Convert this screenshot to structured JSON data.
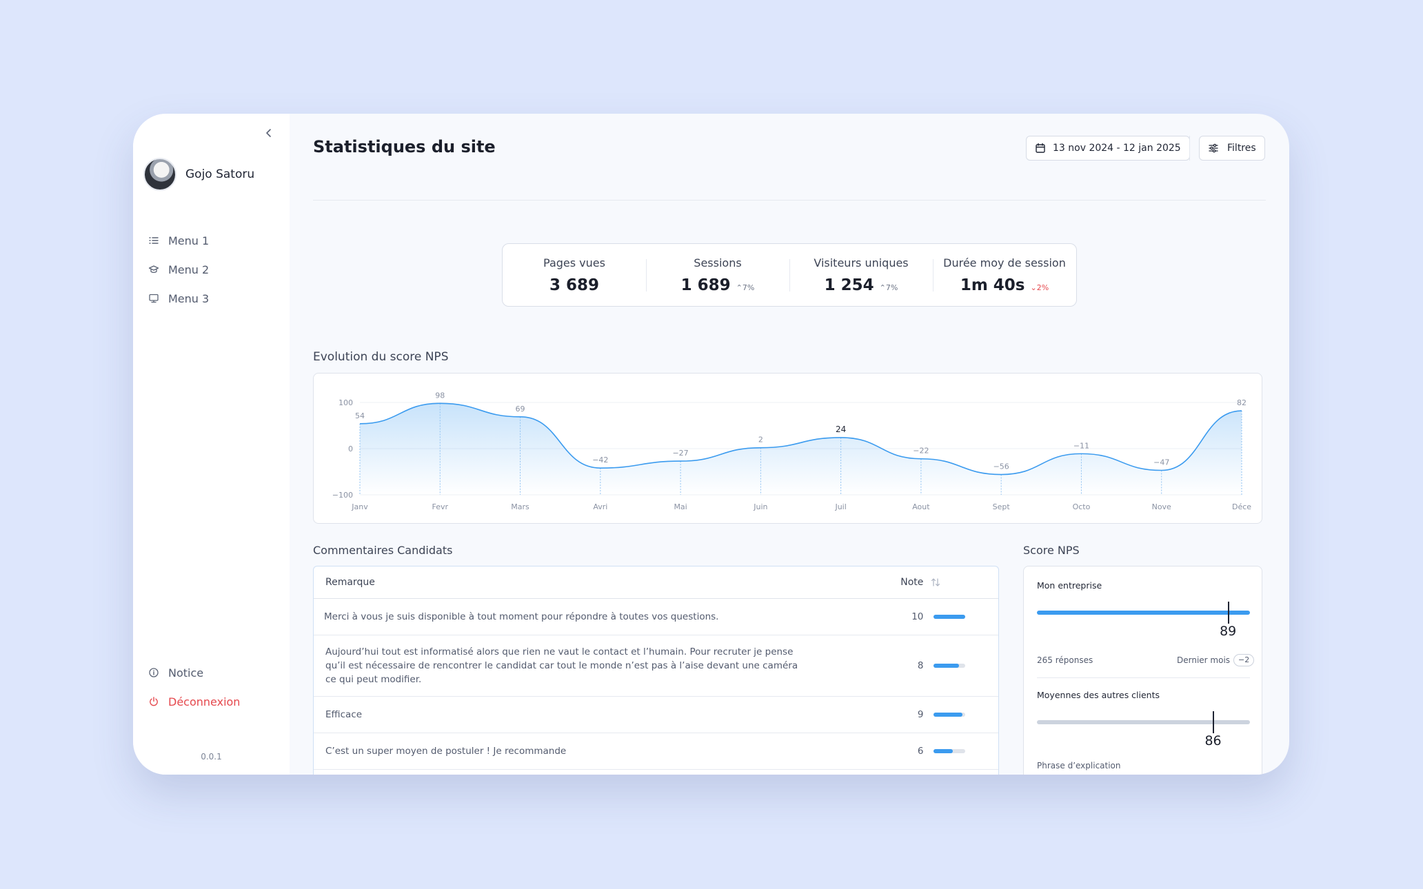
{
  "sidebar": {
    "user_name": "Gojo Satoru",
    "menu": [
      {
        "label": "Menu 1",
        "icon": "list-icon"
      },
      {
        "label": "Menu 2",
        "icon": "graduation-cap-icon"
      },
      {
        "label": "Menu 3",
        "icon": "monitor-icon"
      }
    ],
    "notice_label": "Notice",
    "logout_label": "Déconnexion",
    "version": "0.0.1"
  },
  "header": {
    "title": "Statistiques du site",
    "date_range": "13 nov 2024 - 12 jan 2025",
    "filters_label": "Filtres"
  },
  "stats": [
    {
      "label": "Pages vues",
      "value": "3 689",
      "delta": "",
      "trend": "none"
    },
    {
      "label": "Sessions",
      "value": "1 689",
      "delta": "7%",
      "trend": "up"
    },
    {
      "label": "Visiteurs uniques",
      "value": "1 254",
      "delta": "7%",
      "trend": "up"
    },
    {
      "label": "Durée moy de session",
      "value": "1m 40s",
      "delta": "2%",
      "trend": "down"
    }
  ],
  "nps_chart": {
    "title": "Evolution du score NPS",
    "highlight_index": 6
  },
  "chart_data": {
    "type": "area",
    "title": "Evolution du score NPS",
    "xlabel": "",
    "ylabel": "",
    "categories": [
      "Janv",
      "Fevr",
      "Mars",
      "Avri",
      "Mai",
      "Juin",
      "Juil",
      "Aout",
      "Sept",
      "Octo",
      "Nove",
      "Déce"
    ],
    "values": [
      54,
      98,
      69,
      -42,
      -27,
      2,
      24,
      -22,
      -56,
      -11,
      -47,
      82
    ],
    "data_labels": [
      "54",
      "98",
      "69",
      "−42",
      "−27",
      "2",
      "24",
      "−22",
      "−56",
      "−11",
      "−47",
      "82"
    ],
    "y_ticks": [
      "100",
      "0",
      "−100"
    ],
    "ylim": [
      -100,
      100
    ],
    "grid": true,
    "color": "#3b9bef"
  },
  "comments": {
    "title": "Commentaires Candidats",
    "col_remark": "Remarque",
    "col_note": "Note",
    "rows": [
      {
        "remark": "Merci à vous je suis disponible à tout moment pour répondre à toutes vos questions.",
        "note": "10",
        "fraction": 1.0
      },
      {
        "remark": "Aujourd’hui tout est informatisé alors que rien ne vaut le contact et l’humain. Pour recruter je pense qu’il est nécessaire de rencontrer le candidat car tout le monde n’est pas à l’aise devant une caméra ce qui peut modifier.",
        "note": "8",
        "fraction": 0.8
      },
      {
        "remark": "Efficace",
        "note": "9",
        "fraction": 0.9
      },
      {
        "remark": "C’est un super moyen de postuler ! Je recommande",
        "note": "6",
        "fraction": 0.6
      }
    ]
  },
  "nps_score": {
    "title": "Score NPS",
    "company_label": "Mon entreprise",
    "company_value": "89",
    "company_fraction": 0.9,
    "responses": "265 réponses",
    "period_label": "Dernier mois",
    "period_delta": "−2",
    "others_label": "Moyennes des autres clients",
    "others_value": "86",
    "others_fraction": 0.83,
    "explanation_label": "Phrase d’explication",
    "colors": {
      "company": "#3b9bef",
      "others": "#ccd3de"
    }
  }
}
